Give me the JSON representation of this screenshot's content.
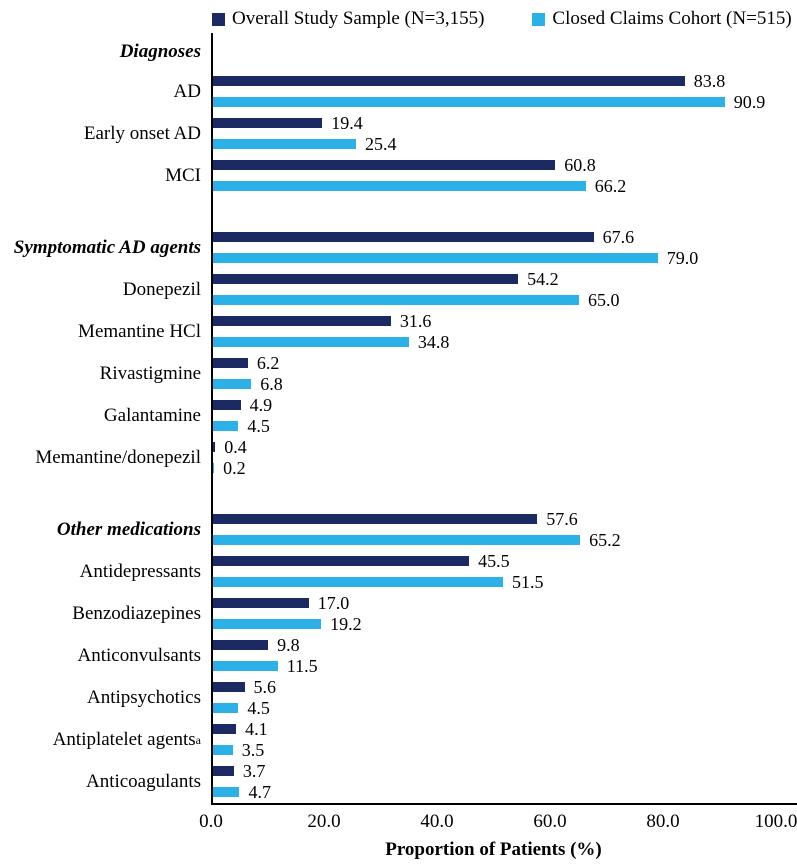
{
  "legend": {
    "items": [
      {
        "label": "Overall Study Sample (N=3,155)",
        "color": "#1B2A63"
      },
      {
        "label": "Closed Claims Cohort (N=515)",
        "color": "#2BB0E7"
      }
    ]
  },
  "chart_data": {
    "type": "bar",
    "orientation": "horizontal",
    "xlabel": "Proportion of Patients (%)",
    "xlim": [
      0,
      100
    ],
    "xticks": [
      "0.0",
      "20.0",
      "40.0",
      "60.0",
      "80.0",
      "100.0"
    ],
    "grid": false,
    "legend_position": "top",
    "value_labels": "one-decimal",
    "series": [
      {
        "name": "Overall Study Sample (N=3,155)",
        "color": "#1B2A63"
      },
      {
        "name": "Closed Claims Cohort (N=515)",
        "color": "#2BB0E7"
      }
    ],
    "rows": [
      {
        "type": "header",
        "label": "Diagnoses"
      },
      {
        "type": "pair",
        "label": "AD",
        "values": [
          83.8,
          90.9
        ]
      },
      {
        "type": "pair",
        "label": "Early onset AD",
        "values": [
          19.4,
          25.4
        ]
      },
      {
        "type": "pair",
        "label": "MCI",
        "values": [
          60.8,
          66.2
        ]
      },
      {
        "type": "spacer"
      },
      {
        "type": "pair",
        "label": "Symptomatic AD agents",
        "header": true,
        "values": [
          67.6,
          79.0
        ]
      },
      {
        "type": "pair",
        "label": "Donepezil",
        "values": [
          54.2,
          65.0
        ]
      },
      {
        "type": "pair",
        "label": "Memantine HCl",
        "values": [
          31.6,
          34.8
        ]
      },
      {
        "type": "pair",
        "label": "Rivastigmine",
        "values": [
          6.2,
          6.8
        ]
      },
      {
        "type": "pair",
        "label": "Galantamine",
        "values": [
          4.9,
          4.5
        ]
      },
      {
        "type": "pair",
        "label": "Memantine/donepezil",
        "values": [
          0.4,
          0.2
        ]
      },
      {
        "type": "spacer"
      },
      {
        "type": "pair",
        "label": "Other medications",
        "header": true,
        "values": [
          57.6,
          65.2
        ]
      },
      {
        "type": "pair",
        "label": "Antidepressants",
        "values": [
          45.5,
          51.5
        ]
      },
      {
        "type": "pair",
        "label": "Benzodiazepines",
        "values": [
          17.0,
          19.2
        ]
      },
      {
        "type": "pair",
        "label": "Anticonvulsants",
        "values": [
          9.8,
          11.5
        ]
      },
      {
        "type": "pair",
        "label": "Antipsychotics",
        "values": [
          5.6,
          4.5
        ]
      },
      {
        "type": "pair",
        "label": "Antiplatelet agents",
        "sup": "a",
        "values": [
          4.1,
          3.5
        ]
      },
      {
        "type": "pair",
        "label": "Anticoagulants",
        "values": [
          3.7,
          4.7
        ]
      }
    ]
  }
}
